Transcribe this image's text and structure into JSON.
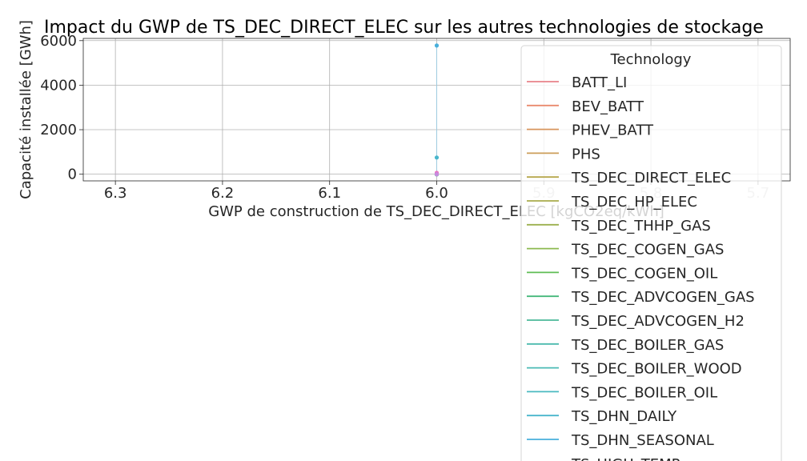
{
  "chart_data": {
    "type": "line",
    "title": "Impact du GWP de TS_DEC_DIRECT_ELEC sur les autres technologies de stockage",
    "xlabel": "GWP de construction de TS_DEC_DIRECT_ELEC [kgCO2eq/kWh]",
    "ylabel": "Capacité installée [GWh]",
    "xlim": [
      6.33,
      5.67
    ],
    "x_inverted": true,
    "ylim": [
      -300,
      6100
    ],
    "xticks": [
      "6.3",
      "6.2",
      "6.1",
      "6.0",
      "5.9",
      "5.8",
      "5.7"
    ],
    "xtick_values": [
      6.3,
      6.2,
      6.1,
      6.0,
      5.9,
      5.8,
      5.7
    ],
    "yticks": [
      "0",
      "2000",
      "4000",
      "6000"
    ],
    "ytick_values": [
      0,
      2000,
      4000,
      6000
    ],
    "grid": true,
    "legend_title": "Technology",
    "legend_position": "upper right",
    "x": [
      6.0
    ],
    "series": [
      {
        "name": "BATT_LI",
        "color": "#e8828a",
        "values": [
          0
        ]
      },
      {
        "name": "BEV_BATT",
        "color": "#ea8a6e",
        "values": [
          0
        ]
      },
      {
        "name": "PHEV_BATT",
        "color": "#d7955c",
        "values": [
          0
        ]
      },
      {
        "name": "PHS",
        "color": "#cc9e58",
        "values": [
          0
        ]
      },
      {
        "name": "TS_DEC_DIRECT_ELEC",
        "color": "#b6a74c",
        "values": [
          0
        ]
      },
      {
        "name": "TS_DEC_HP_ELEC",
        "color": "#a9ab4c",
        "values": [
          0
        ]
      },
      {
        "name": "TS_DEC_THHP_GAS",
        "color": "#9cb04e",
        "values": [
          0
        ]
      },
      {
        "name": "TS_DEC_COGEN_GAS",
        "color": "#8cb950",
        "values": [
          0
        ]
      },
      {
        "name": "TS_DEC_COGEN_OIL",
        "color": "#5fbd54",
        "values": [
          0
        ]
      },
      {
        "name": "TS_DEC_ADVCOGEN_GAS",
        "color": "#45b87a",
        "values": [
          0
        ]
      },
      {
        "name": "TS_DEC_ADVCOGEN_H2",
        "color": "#4cb99a",
        "values": [
          0
        ]
      },
      {
        "name": "TS_DEC_BOILER_GAS",
        "color": "#4cbaad",
        "values": [
          0
        ]
      },
      {
        "name": "TS_DEC_BOILER_WOOD",
        "color": "#4bbab6",
        "values": [
          0
        ]
      },
      {
        "name": "TS_DEC_BOILER_OIL",
        "color": "#4ab9c0",
        "values": [
          0
        ]
      },
      {
        "name": "TS_DHN_DAILY",
        "color": "#49b6cc",
        "values": [
          750
        ]
      },
      {
        "name": "TS_DHN_SEASONAL",
        "color": "#48afdb",
        "values": [
          5780
        ]
      },
      {
        "name": "TS_HIGH_TEMP",
        "color": "#5aa6e6",
        "values": [
          0
        ]
      }
    ],
    "extra_points": [
      {
        "color": "#ea6fc0",
        "x": 6.0,
        "y": 60
      },
      {
        "color": "#c78adf",
        "x": 6.0,
        "y": 0
      }
    ]
  }
}
